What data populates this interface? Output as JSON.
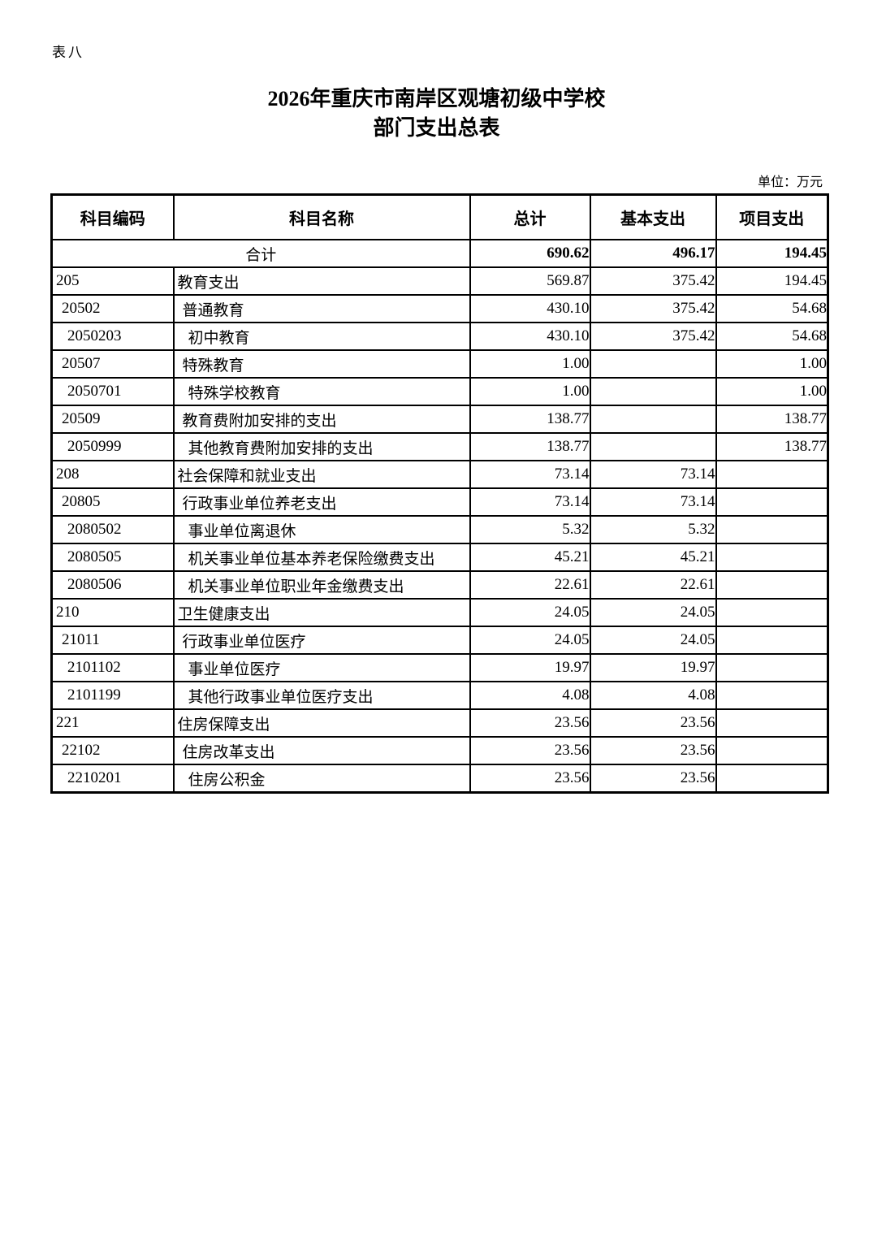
{
  "page": {
    "table_label": "表八",
    "title_line1": "2026年重庆市南岸区观塘初级中学校",
    "title_line2": "部门支出总表",
    "unit_note": "单位：万元"
  },
  "table": {
    "columns": [
      "科目编码",
      "科目名称",
      "总计",
      "基本支出",
      "项目支出"
    ],
    "total_row": {
      "name": "合计",
      "total": "690.62",
      "basic": "496.17",
      "project": "194.45"
    },
    "rows": [
      {
        "code": "205",
        "name": "教育支出",
        "level": 1,
        "total": "569.87",
        "basic": "375.42",
        "project": "194.45"
      },
      {
        "code": "20502",
        "name": "普通教育",
        "level": 2,
        "total": "430.10",
        "basic": "375.42",
        "project": "54.68"
      },
      {
        "code": "2050203",
        "name": "初中教育",
        "level": 3,
        "total": "430.10",
        "basic": "375.42",
        "project": "54.68"
      },
      {
        "code": "20507",
        "name": "特殊教育",
        "level": 2,
        "total": "1.00",
        "basic": "",
        "project": "1.00"
      },
      {
        "code": "2050701",
        "name": "特殊学校教育",
        "level": 3,
        "total": "1.00",
        "basic": "",
        "project": "1.00"
      },
      {
        "code": "20509",
        "name": "教育费附加安排的支出",
        "level": 2,
        "total": "138.77",
        "basic": "",
        "project": "138.77"
      },
      {
        "code": "2050999",
        "name": "其他教育费附加安排的支出",
        "level": 3,
        "total": "138.77",
        "basic": "",
        "project": "138.77"
      },
      {
        "code": "208",
        "name": "社会保障和就业支出",
        "level": 1,
        "total": "73.14",
        "basic": "73.14",
        "project": ""
      },
      {
        "code": "20805",
        "name": "行政事业单位养老支出",
        "level": 2,
        "total": "73.14",
        "basic": "73.14",
        "project": ""
      },
      {
        "code": "2080502",
        "name": "事业单位离退休",
        "level": 3,
        "total": "5.32",
        "basic": "5.32",
        "project": ""
      },
      {
        "code": "2080505",
        "name": "机关事业单位基本养老保险缴费支出",
        "level": 3,
        "total": "45.21",
        "basic": "45.21",
        "project": ""
      },
      {
        "code": "2080506",
        "name": "机关事业单位职业年金缴费支出",
        "level": 3,
        "total": "22.61",
        "basic": "22.61",
        "project": ""
      },
      {
        "code": "210",
        "name": "卫生健康支出",
        "level": 1,
        "total": "24.05",
        "basic": "24.05",
        "project": ""
      },
      {
        "code": "21011",
        "name": "行政事业单位医疗",
        "level": 2,
        "total": "24.05",
        "basic": "24.05",
        "project": ""
      },
      {
        "code": "2101102",
        "name": "事业单位医疗",
        "level": 3,
        "total": "19.97",
        "basic": "19.97",
        "project": ""
      },
      {
        "code": "2101199",
        "name": "其他行政事业单位医疗支出",
        "level": 3,
        "total": "4.08",
        "basic": "4.08",
        "project": ""
      },
      {
        "code": "221",
        "name": "住房保障支出",
        "level": 1,
        "total": "23.56",
        "basic": "23.56",
        "project": ""
      },
      {
        "code": "22102",
        "name": "住房改革支出",
        "level": 2,
        "total": "23.56",
        "basic": "23.56",
        "project": ""
      },
      {
        "code": "2210201",
        "name": "住房公积金",
        "level": 3,
        "total": "23.56",
        "basic": "23.56",
        "project": ""
      }
    ]
  }
}
